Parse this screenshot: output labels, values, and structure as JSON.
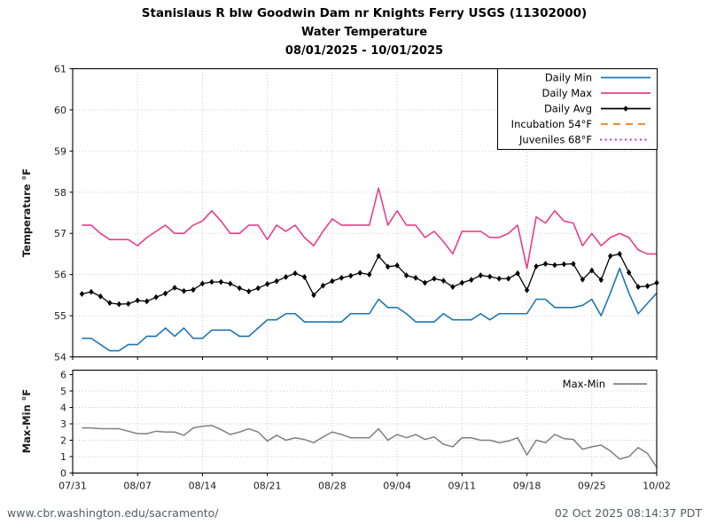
{
  "title": {
    "line1": "Stanislaus R blw Goodwin Dam nr Knights Ferry USGS (11302000)",
    "line2": "Water Temperature",
    "line3": "08/01/2025 - 10/01/2025"
  },
  "footer": {
    "url": "www.cbr.washington.edu/sacramento/",
    "timestamp": "02 Oct 2025 08:14:37 PDT"
  },
  "colors": {
    "daily_min": "#1f77b4",
    "daily_max": "#e83e8c",
    "daily_avg": "#000000",
    "incubation": "#ef7d21",
    "juveniles": "#c32ec3",
    "maxmin": "#808080",
    "grid": "#c4c4c4",
    "tick_text": "#202020"
  },
  "chart_data": [
    {
      "type": "line",
      "ylabel": "Temperature °F",
      "ylim": [
        54,
        61
      ],
      "yticks": [
        54,
        55,
        56,
        57,
        58,
        59,
        60,
        61
      ],
      "grid": "dotted",
      "xticklabels": [
        "07/31",
        "08/07",
        "08/14",
        "08/21",
        "08/28",
        "09/04",
        "09/11",
        "09/18",
        "09/25",
        "10/02"
      ],
      "dates": [
        "08/01",
        "08/02",
        "08/03",
        "08/04",
        "08/05",
        "08/06",
        "08/07",
        "08/08",
        "08/09",
        "08/10",
        "08/11",
        "08/12",
        "08/13",
        "08/14",
        "08/15",
        "08/16",
        "08/17",
        "08/18",
        "08/19",
        "08/20",
        "08/21",
        "08/22",
        "08/23",
        "08/24",
        "08/25",
        "08/26",
        "08/27",
        "08/28",
        "08/29",
        "08/30",
        "08/31",
        "09/01",
        "09/02",
        "09/03",
        "09/04",
        "09/05",
        "09/06",
        "09/07",
        "09/08",
        "09/09",
        "09/10",
        "09/11",
        "09/12",
        "09/13",
        "09/14",
        "09/15",
        "09/16",
        "09/17",
        "09/18",
        "09/19",
        "09/20",
        "09/21",
        "09/22",
        "09/23",
        "09/24",
        "09/25",
        "09/26",
        "09/27",
        "09/28",
        "09/29",
        "09/30",
        "10/01",
        "10/02"
      ],
      "series": [
        {
          "name": "Daily Min",
          "color_key": "daily_min",
          "marker": "none",
          "values": [
            54.45,
            54.45,
            54.3,
            54.15,
            54.15,
            54.3,
            54.3,
            54.5,
            54.5,
            54.7,
            54.5,
            54.7,
            54.45,
            54.45,
            54.65,
            54.65,
            54.65,
            54.5,
            54.5,
            54.7,
            54.9,
            54.9,
            55.05,
            55.05,
            54.85,
            54.85,
            54.85,
            54.85,
            54.85,
            55.05,
            55.05,
            55.05,
            55.4,
            55.2,
            55.2,
            55.05,
            54.85,
            54.85,
            54.85,
            55.05,
            54.9,
            54.9,
            54.9,
            55.05,
            54.9,
            55.05,
            55.05,
            55.05,
            55.05,
            55.4,
            55.4,
            55.2,
            55.2,
            55.2,
            55.25,
            55.4,
            55.0,
            55.55,
            56.15,
            55.55,
            55.05,
            55.3,
            55.55
          ]
        },
        {
          "name": "Daily Max",
          "color_key": "daily_max",
          "marker": "none",
          "values": [
            57.2,
            57.2,
            57.0,
            56.85,
            56.85,
            56.85,
            56.7,
            56.9,
            57.05,
            57.2,
            57.0,
            57.0,
            57.2,
            57.3,
            57.55,
            57.3,
            57.0,
            57.0,
            57.2,
            57.2,
            56.85,
            57.2,
            57.05,
            57.2,
            56.9,
            56.7,
            57.05,
            57.35,
            57.2,
            57.2,
            57.2,
            57.2,
            58.1,
            57.2,
            57.55,
            57.2,
            57.2,
            56.9,
            57.05,
            56.8,
            56.5,
            57.05,
            57.05,
            57.05,
            56.9,
            56.9,
            57.0,
            57.2,
            56.15,
            57.4,
            57.25,
            57.55,
            57.3,
            57.25,
            56.7,
            57.0,
            56.7,
            56.9,
            57.0,
            56.9,
            56.6,
            56.5,
            56.5
          ]
        },
        {
          "name": "Daily Avg",
          "color_key": "daily_avg",
          "marker": "diamond",
          "values": [
            55.53,
            55.58,
            55.47,
            55.31,
            55.28,
            55.29,
            55.37,
            55.35,
            55.45,
            55.54,
            55.68,
            55.6,
            55.63,
            55.78,
            55.82,
            55.82,
            55.78,
            55.67,
            55.59,
            55.67,
            55.77,
            55.84,
            55.94,
            56.03,
            55.94,
            55.5,
            55.73,
            55.84,
            55.92,
            55.97,
            56.04,
            56.0,
            56.45,
            56.19,
            56.22,
            55.98,
            55.92,
            55.8,
            55.9,
            55.85,
            55.7,
            55.8,
            55.87,
            55.98,
            55.95,
            55.9,
            55.9,
            56.03,
            55.62,
            56.2,
            56.26,
            56.23,
            56.25,
            56.26,
            55.88,
            56.1,
            55.87,
            56.45,
            56.5,
            56.05,
            55.7,
            55.72,
            55.8
          ]
        }
      ],
      "reference_lines": [
        {
          "name": "Incubation 54°F",
          "value": 54,
          "style": "dashed",
          "color_key": "incubation"
        },
        {
          "name": "Juveniles 68°F",
          "value": 68,
          "style": "dotted",
          "color_key": "juveniles"
        }
      ],
      "legend": {
        "position": "upper-right",
        "framed": true,
        "items": [
          {
            "label": "Daily Min",
            "style": "solid",
            "color_key": "daily_min"
          },
          {
            "label": "Daily Max",
            "style": "solid",
            "color_key": "daily_max"
          },
          {
            "label": "Daily Avg",
            "style": "solid-marker",
            "color_key": "daily_avg"
          },
          {
            "label": "Incubation 54°F",
            "style": "dashed",
            "color_key": "incubation"
          },
          {
            "label": "Juveniles 68°F",
            "style": "dotted",
            "color_key": "juveniles"
          }
        ]
      }
    },
    {
      "type": "line",
      "ylabel": "Max-Min °F",
      "ylim": [
        0,
        6
      ],
      "yticks": [
        0,
        1,
        2,
        3,
        4,
        5,
        6
      ],
      "grid": "dotted",
      "xticklabels": [
        "07/31",
        "08/07",
        "08/14",
        "08/21",
        "08/28",
        "09/04",
        "09/11",
        "09/18",
        "09/25",
        "10/02"
      ],
      "series": [
        {
          "name": "Max-Min",
          "color_key": "maxmin",
          "marker": "none",
          "values": [
            2.75,
            2.75,
            2.7,
            2.7,
            2.7,
            2.55,
            2.4,
            2.4,
            2.55,
            2.5,
            2.5,
            2.3,
            2.75,
            2.85,
            2.9,
            2.65,
            2.35,
            2.5,
            2.7,
            2.5,
            1.95,
            2.3,
            2.0,
            2.15,
            2.05,
            1.85,
            2.2,
            2.5,
            2.35,
            2.15,
            2.15,
            2.15,
            2.7,
            2.0,
            2.35,
            2.15,
            2.35,
            2.05,
            2.2,
            1.75,
            1.6,
            2.15,
            2.15,
            2.0,
            2.0,
            1.85,
            1.95,
            2.15,
            1.1,
            2.0,
            1.85,
            2.35,
            2.1,
            2.05,
            1.45,
            1.6,
            1.7,
            1.35,
            0.85,
            1.0,
            1.55,
            1.2,
            0.35
          ]
        }
      ],
      "legend": {
        "position": "upper-right",
        "framed": false,
        "items": [
          {
            "label": "Max-Min",
            "style": "solid",
            "color_key": "maxmin"
          }
        ]
      }
    }
  ]
}
